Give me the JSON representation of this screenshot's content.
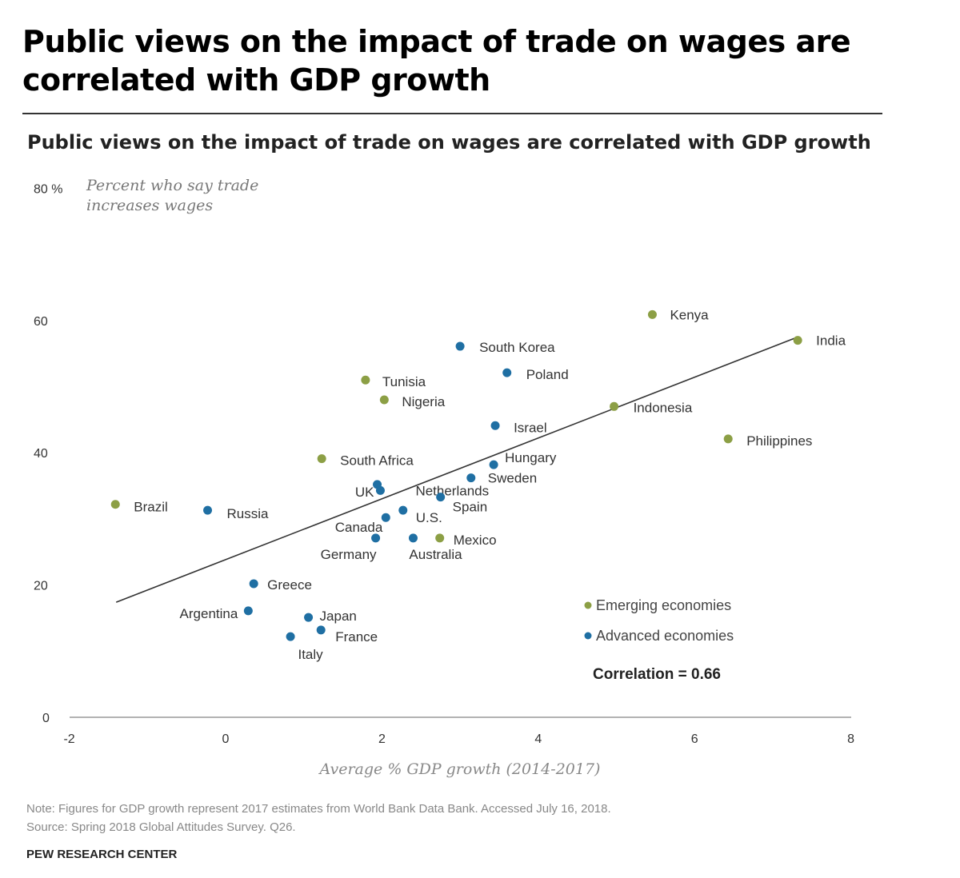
{
  "header": {
    "title": "Public views on the impact of trade on wages are correlated with GDP growth"
  },
  "colors": {
    "emerging": "#8c9f45",
    "advanced": "#1f6fa3",
    "trend": "#333333"
  },
  "chart_data": {
    "type": "scatter",
    "title": "Public views on the impact of trade on wages are correlated with GDP growth",
    "ylabel": "Percent who say trade increases wages",
    "ylabel_lines": [
      "Percent who say trade",
      "increases wages"
    ],
    "xlabel": "Average % GDP growth (2014-2017)",
    "xlim": [
      -2,
      8
    ],
    "ylim": [
      0,
      80
    ],
    "xticks": [
      "-2",
      "0",
      "2",
      "4",
      "6",
      "8"
    ],
    "yticks": [
      "0",
      "20",
      "40",
      "60",
      "80 %"
    ],
    "legend": [
      {
        "name": "Emerging economies",
        "group": "emerging"
      },
      {
        "name": "Advanced economies",
        "group": "advanced"
      }
    ],
    "legend_placement": "bottom-right",
    "annotation": "Correlation = 0.66",
    "trendline": {
      "x": [
        -1.4,
        7.3
      ],
      "y": [
        17.4,
        57.4
      ]
    },
    "points": [
      {
        "name": "Kenya",
        "x": 5.46,
        "y": 60.9,
        "group": "emerging"
      },
      {
        "name": "India",
        "x": 7.32,
        "y": 57.0,
        "group": "emerging"
      },
      {
        "name": "South Korea",
        "x": 3.0,
        "y": 56.1,
        "group": "advanced"
      },
      {
        "name": "Poland",
        "x": 3.6,
        "y": 52.1,
        "group": "advanced"
      },
      {
        "name": "Tunisia",
        "x": 1.79,
        "y": 51.0,
        "group": "emerging"
      },
      {
        "name": "Nigeria",
        "x": 2.03,
        "y": 48.0,
        "group": "emerging"
      },
      {
        "name": "Indonesia",
        "x": 4.97,
        "y": 47.0,
        "group": "emerging"
      },
      {
        "name": "Israel",
        "x": 3.45,
        "y": 44.1,
        "group": "advanced"
      },
      {
        "name": "Philippines",
        "x": 6.43,
        "y": 42.1,
        "group": "emerging"
      },
      {
        "name": "South Africa",
        "x": 1.23,
        "y": 39.1,
        "group": "emerging"
      },
      {
        "name": "Hungary",
        "x": 3.43,
        "y": 38.2,
        "group": "advanced"
      },
      {
        "name": "Sweden",
        "x": 3.14,
        "y": 36.2,
        "group": "advanced"
      },
      {
        "name": "UK",
        "x": 1.94,
        "y": 35.2,
        "group": "advanced"
      },
      {
        "name": "Netherlands",
        "x": 1.98,
        "y": 34.3,
        "group": "advanced"
      },
      {
        "name": "Spain",
        "x": 2.75,
        "y": 33.3,
        "group": "advanced"
      },
      {
        "name": "Brazil",
        "x": -1.41,
        "y": 32.2,
        "group": "emerging"
      },
      {
        "name": "Russia",
        "x": -0.23,
        "y": 31.3,
        "group": "advanced"
      },
      {
        "name": "U.S.",
        "x": 2.27,
        "y": 31.3,
        "group": "advanced"
      },
      {
        "name": "Canada",
        "x": 2.05,
        "y": 30.2,
        "group": "advanced"
      },
      {
        "name": "Germany",
        "x": 1.92,
        "y": 27.1,
        "group": "advanced"
      },
      {
        "name": "Australia",
        "x": 2.4,
        "y": 27.1,
        "group": "advanced"
      },
      {
        "name": "Mexico",
        "x": 2.74,
        "y": 27.1,
        "group": "emerging"
      },
      {
        "name": "Greece",
        "x": 0.36,
        "y": 20.2,
        "group": "advanced"
      },
      {
        "name": "Argentina",
        "x": 0.29,
        "y": 16.1,
        "group": "advanced"
      },
      {
        "name": "Japan",
        "x": 1.06,
        "y": 15.1,
        "group": "advanced"
      },
      {
        "name": "France",
        "x": 1.22,
        "y": 13.2,
        "group": "advanced"
      },
      {
        "name": "Italy",
        "x": 0.83,
        "y": 12.2,
        "group": "advanced"
      }
    ],
    "note": "Note: Figures for GDP growth represent 2017 estimates from World Bank Data Bank. Accessed July 16, 2018.",
    "source": "Source: Spring 2018 Global Attitudes Survey. Q26.",
    "credit": "PEW RESEARCH CENTER"
  }
}
